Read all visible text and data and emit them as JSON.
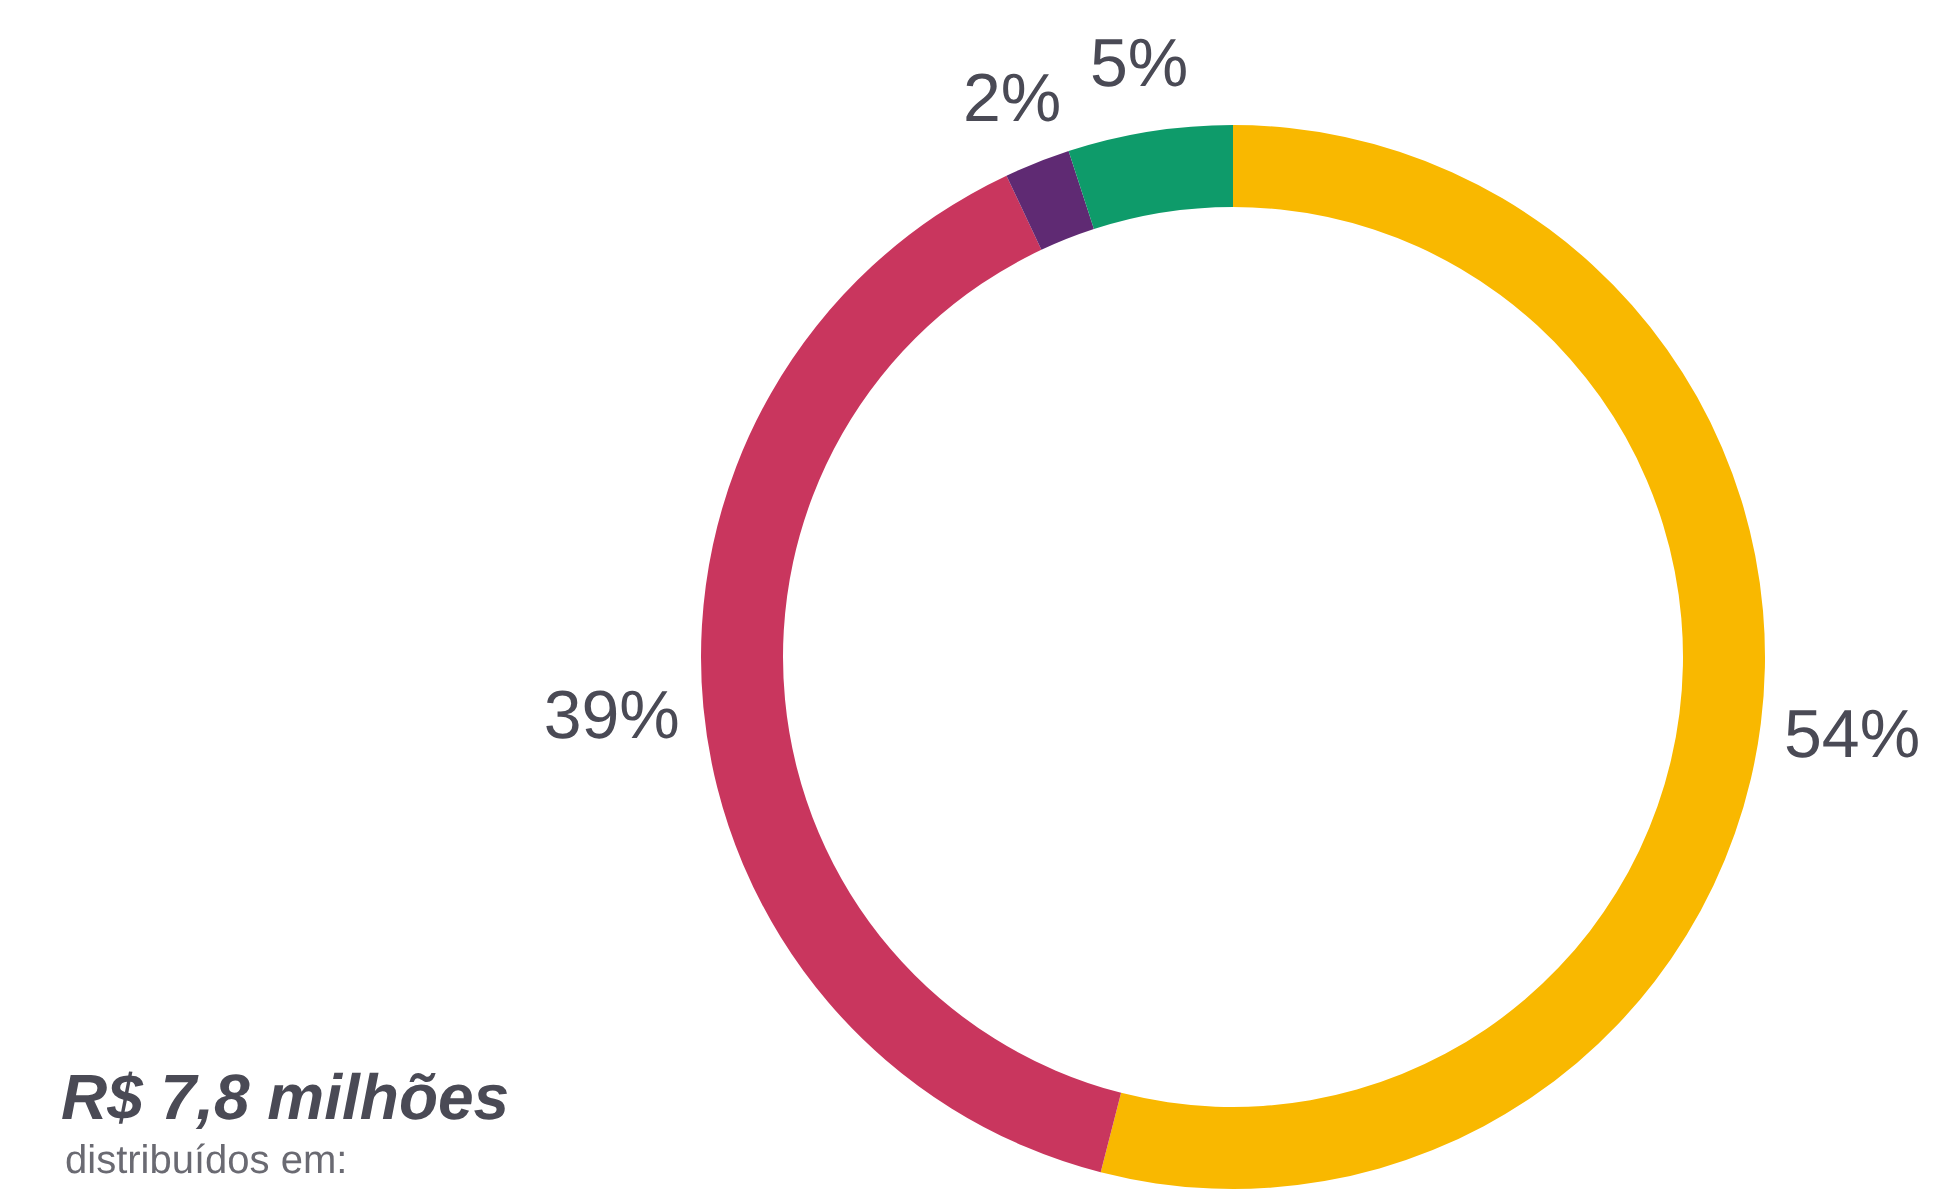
{
  "chart_data": {
    "type": "donut",
    "title": "R$ 7,8 milhões",
    "subtitle": "distribuídos em:",
    "categories": [
      null,
      null,
      null,
      null
    ],
    "values": [
      54,
      39,
      2,
      5
    ],
    "value_labels": [
      "54%",
      "39%",
      "2%",
      "5%"
    ],
    "colors": [
      "#f9b800",
      "#c9365e",
      "#5f2a73",
      "#0e9b6a"
    ]
  }
}
